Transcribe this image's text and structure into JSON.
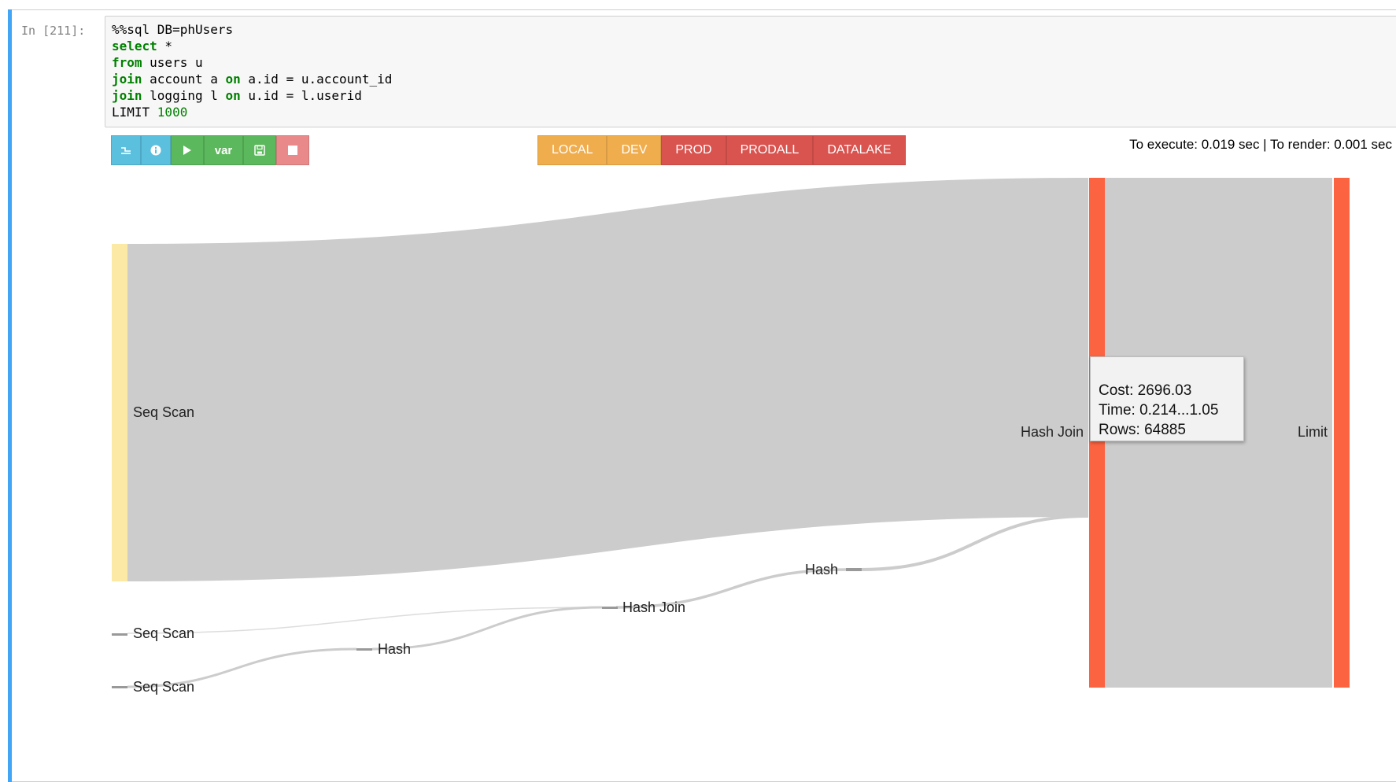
{
  "cell": {
    "prompt": "In [211]:",
    "code_lines": [
      [
        {
          "t": "%%sql DB=phUsers",
          "c": ""
        }
      ],
      [
        {
          "t": "select",
          "c": "kw"
        },
        {
          "t": " *",
          "c": ""
        }
      ],
      [
        {
          "t": "from",
          "c": "kw"
        },
        {
          "t": " users u",
          "c": ""
        }
      ],
      [
        {
          "t": "join",
          "c": "kw"
        },
        {
          "t": " account a ",
          "c": ""
        },
        {
          "t": "on",
          "c": "kw"
        },
        {
          "t": " a.id = u.account_id",
          "c": ""
        }
      ],
      [
        {
          "t": "join",
          "c": "kw"
        },
        {
          "t": " logging l ",
          "c": ""
        },
        {
          "t": "on",
          "c": "kw"
        },
        {
          "t": " u.id = l.userid",
          "c": ""
        }
      ],
      [
        {
          "t": "LIMIT ",
          "c": ""
        },
        {
          "t": "1000",
          "c": "num"
        }
      ]
    ]
  },
  "toolbar": {
    "var_label": "var",
    "icons": [
      "chart-icon",
      "info-icon",
      "play-icon",
      "save-icon",
      "stop-icon"
    ]
  },
  "environments": [
    {
      "label": "LOCAL",
      "color": "#f0ad4e"
    },
    {
      "label": "DEV",
      "color": "#f0ad4e"
    },
    {
      "label": "PROD",
      "color": "#d9534f"
    },
    {
      "label": "PRODALL",
      "color": "#d9534f"
    },
    {
      "label": "DATALAKE",
      "color": "#d9534f"
    }
  ],
  "timing": "To execute: 0.019 sec | To render: 0.001 sec",
  "plan": {
    "nodes": [
      {
        "id": "seq1",
        "label": "Seq Scan"
      },
      {
        "id": "seq2",
        "label": "Seq Scan"
      },
      {
        "id": "seq3",
        "label": "Seq Scan"
      },
      {
        "id": "hash1",
        "label": "Hash"
      },
      {
        "id": "hj1",
        "label": "Hash Join"
      },
      {
        "id": "hash2",
        "label": "Hash"
      },
      {
        "id": "hj2",
        "label": "Hash Join"
      },
      {
        "id": "limit",
        "label": "Limit"
      }
    ],
    "colors": {
      "flow": "#cccccc",
      "seq_large": "#fde9a6",
      "highlight": "#fb6341",
      "small_node": "#999999"
    }
  },
  "tooltip": {
    "cost": "Cost: 2696.03",
    "time": "Time: 0.214...1.05",
    "rows": "Rows: 64885"
  }
}
